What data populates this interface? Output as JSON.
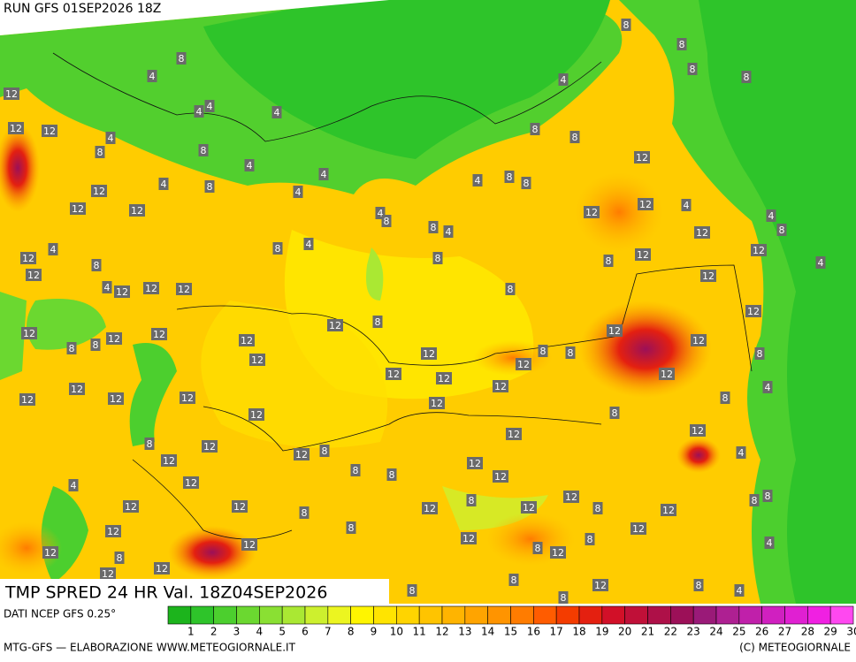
{
  "header": {
    "run": "RUN GFS 01SEP2026 18Z"
  },
  "map": {
    "field_title": "TMP SPRED 24 HR Val. 18Z04SEP2026",
    "labels": [
      8,
      4,
      12,
      4,
      4,
      4,
      12,
      12,
      4,
      8,
      8,
      4,
      4,
      8,
      12,
      12,
      12,
      4,
      4,
      4,
      8,
      8,
      4,
      4,
      8,
      8,
      8,
      8,
      4,
      8,
      8,
      8,
      8,
      12,
      12,
      12,
      4,
      12,
      4,
      8,
      12,
      4,
      12,
      12,
      8,
      8,
      8,
      8,
      4,
      4,
      12,
      12,
      8,
      4,
      12,
      12,
      12,
      12,
      8,
      8,
      12,
      12,
      12,
      12,
      12,
      8,
      12,
      12,
      12,
      12,
      12,
      12,
      8,
      8,
      12,
      12,
      8,
      12,
      12,
      12,
      12,
      12,
      12,
      12,
      8,
      12,
      12,
      12,
      8,
      8,
      8,
      12,
      12,
      12,
      8,
      12,
      4,
      8,
      4,
      4,
      12,
      12,
      12,
      8,
      8,
      12,
      8,
      12,
      12,
      8,
      12,
      8,
      8,
      12,
      12,
      12,
      8,
      8,
      12,
      12,
      4,
      12,
      8,
      12,
      12,
      8,
      12,
      8,
      4,
      8,
      8
    ]
  },
  "legend": {
    "source": "DATI NCEP GFS 0.25°",
    "scale": [
      1,
      2,
      3,
      4,
      5,
      6,
      7,
      8,
      9,
      10,
      11,
      12,
      13,
      14,
      15,
      16,
      17,
      18,
      19,
      20,
      21,
      22,
      23,
      24,
      25,
      26,
      27,
      28,
      29,
      30
    ],
    "colors": [
      "#1cb41c",
      "#2ec42a",
      "#4ccf2e",
      "#6bd830",
      "#8ae033",
      "#aae833",
      "#cdf02e",
      "#ecf520",
      "#fff500",
      "#ffe400",
      "#ffd400",
      "#ffc400",
      "#ffb400",
      "#ffa400",
      "#ff9400",
      "#ff7c00",
      "#ff5c00",
      "#f43c00",
      "#e42010",
      "#d21028",
      "#c01038",
      "#ae1048",
      "#9c1058",
      "#9a1a78",
      "#ae2092",
      "#c020aa",
      "#d020c0",
      "#e020d2",
      "#f020e2",
      "#ff48f0"
    ]
  },
  "footer": {
    "credit": "MTG-GFS — ELABORAZIONE WWW.METEOGIORNALE.IT",
    "copyright": "(C) METEOGIORNALE"
  }
}
